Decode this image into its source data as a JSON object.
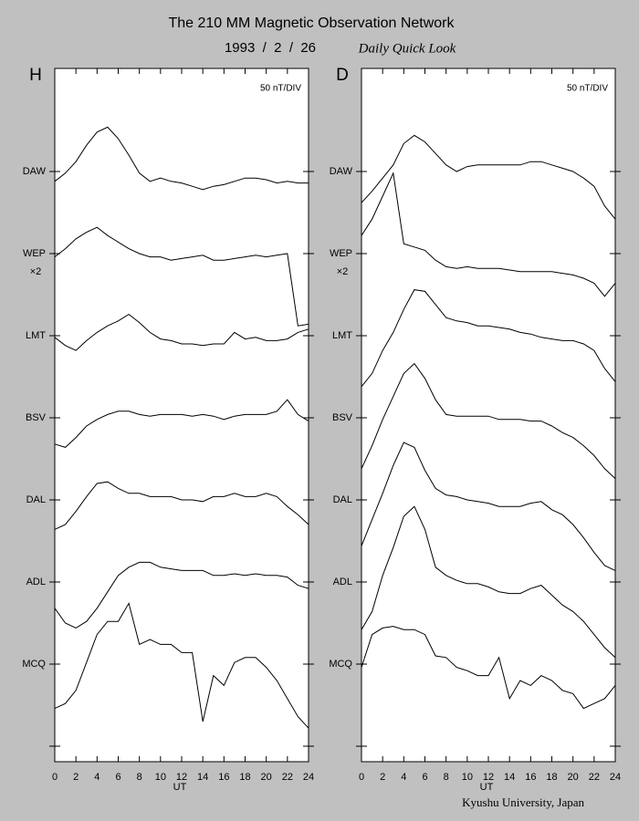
{
  "header": {
    "title": "The 210 MM Magnetic Observation Network",
    "date": "1993  /  2  /  26",
    "subtitle": "Daily Quick Look"
  },
  "footer": "Kyushu University, Japan",
  "chart_data": [
    {
      "type": "line",
      "panel": "H",
      "scale_label": "50 nT/DIV",
      "annotation": "×2",
      "xlabel": "UT",
      "xlim": [
        0,
        24
      ],
      "xticks": [
        0,
        2,
        4,
        6,
        8,
        10,
        12,
        14,
        16,
        18,
        20,
        22,
        24
      ],
      "x": [
        0,
        1,
        2,
        3,
        4,
        5,
        6,
        7,
        8,
        9,
        10,
        11,
        12,
        13,
        14,
        15,
        16,
        17,
        18,
        19,
        20,
        21,
        22,
        23,
        24
      ],
      "stations": [
        "DAW",
        "WEP",
        "LMT",
        "BSV",
        "DAL",
        "ADL",
        "MCQ",
        null
      ],
      "series": [
        {
          "name": "DAW",
          "color": "#000000",
          "values": [
            -6,
            -1,
            6,
            16,
            24,
            27,
            20,
            10,
            -1,
            -6,
            -4,
            -6,
            -7,
            -9,
            -11,
            -9,
            -8,
            -6,
            -4,
            -4,
            -5,
            -7,
            -6,
            -7,
            -7
          ]
        },
        {
          "name": "WEP",
          "color": "#000000",
          "values": [
            -2,
            3,
            9,
            13,
            16,
            11,
            7,
            3,
            0,
            -2,
            -2,
            -4,
            -3,
            -2,
            -1,
            -4,
            -4,
            -3,
            -2,
            -1,
            -2,
            -1,
            0,
            -44,
            -43
          ]
        },
        {
          "name": "LMT",
          "color": "#000000",
          "values": [
            -1,
            -6,
            -9,
            -3,
            2,
            6,
            9,
            13,
            8,
            2,
            -2,
            -3,
            -5,
            -5,
            -6,
            -5,
            -5,
            2,
            -2,
            -1,
            -3,
            -3,
            -2,
            2,
            4
          ]
        },
        {
          "name": "BSV",
          "color": "#000000",
          "values": [
            -16,
            -18,
            -12,
            -5,
            -1,
            2,
            4,
            4,
            2,
            1,
            2,
            2,
            2,
            1,
            2,
            1,
            -1,
            1,
            2,
            2,
            2,
            4,
            11,
            2,
            -2
          ]
        },
        {
          "name": "DAL",
          "color": "#000000",
          "values": [
            -18,
            -15,
            -7,
            2,
            10,
            11,
            7,
            4,
            4,
            2,
            2,
            2,
            0,
            0,
            -1,
            2,
            2,
            4,
            2,
            2,
            4,
            2,
            -4,
            -9,
            -15
          ]
        },
        {
          "name": "ADL",
          "color": "#000000",
          "values": [
            -16,
            -25,
            -28,
            -24,
            -16,
            -6,
            4,
            9,
            12,
            12,
            9,
            8,
            7,
            7,
            7,
            4,
            4,
            5,
            4,
            5,
            4,
            4,
            3,
            -2,
            -4
          ]
        },
        {
          "name": "MCQ",
          "color": "#000000",
          "values": [
            -27,
            -24,
            -16,
            1,
            18,
            26,
            26,
            37,
            12,
            15,
            12,
            12,
            7,
            7,
            -35,
            -7,
            -13,
            1,
            4,
            4,
            -2,
            -10,
            -21,
            -32,
            -39
          ]
        }
      ]
    },
    {
      "type": "line",
      "panel": "D",
      "scale_label": "50 nT/DIV",
      "annotation": "×2",
      "xlabel": "UT",
      "xlim": [
        0,
        24
      ],
      "xticks": [
        0,
        2,
        4,
        6,
        8,
        10,
        12,
        14,
        16,
        18,
        20,
        22,
        24
      ],
      "x": [
        0,
        1,
        2,
        3,
        4,
        5,
        6,
        7,
        8,
        9,
        10,
        11,
        12,
        13,
        14,
        15,
        16,
        17,
        18,
        19,
        20,
        21,
        22,
        23,
        24
      ],
      "stations": [
        "DAW",
        "WEP",
        "LMT",
        "BSV",
        "DAL",
        "ADL",
        "MCQ",
        null
      ],
      "series": [
        {
          "name": "DAW",
          "color": "#000000",
          "values": [
            -19,
            -12,
            -4,
            4,
            17,
            22,
            18,
            11,
            4,
            0,
            3,
            4,
            4,
            4,
            4,
            4,
            6,
            6,
            4,
            2,
            0,
            -4,
            -9,
            -21,
            -29
          ]
        },
        {
          "name": "WEP",
          "color": "#000000",
          "values": [
            11,
            21,
            35,
            49,
            6,
            4,
            2,
            -4,
            -8,
            -9,
            -8,
            -9,
            -9,
            -9,
            -10,
            -11,
            -11,
            -11,
            -11,
            -12,
            -13,
            -15,
            -18,
            -26,
            -18
          ]
        },
        {
          "name": "LMT",
          "color": "#000000",
          "values": [
            -31,
            -23,
            -9,
            2,
            16,
            28,
            27,
            19,
            11,
            9,
            8,
            6,
            6,
            5,
            4,
            2,
            1,
            -1,
            -2,
            -3,
            -3,
            -5,
            -9,
            -20,
            -28
          ]
        },
        {
          "name": "BSV",
          "color": "#000000",
          "values": [
            -31,
            -17,
            -1,
            13,
            27,
            33,
            24,
            11,
            2,
            1,
            1,
            1,
            1,
            -1,
            -1,
            -1,
            -2,
            -2,
            -5,
            -9,
            -12,
            -17,
            -23,
            -31,
            -37
          ]
        },
        {
          "name": "DAL",
          "color": "#000000",
          "values": [
            -28,
            -12,
            4,
            21,
            35,
            32,
            18,
            7,
            3,
            2,
            0,
            -1,
            -2,
            -4,
            -4,
            -4,
            -2,
            -1,
            -6,
            -9,
            -15,
            -23,
            -32,
            -40,
            -43
          ]
        },
        {
          "name": "ADL",
          "color": "#000000",
          "values": [
            -29,
            -18,
            4,
            21,
            40,
            46,
            32,
            9,
            4,
            1,
            -1,
            -1,
            -3,
            -6,
            -7,
            -7,
            -4,
            -2,
            -8,
            -14,
            -18,
            -24,
            -32,
            -40,
            -46
          ]
        },
        {
          "name": "MCQ",
          "color": "#000000",
          "values": [
            -2,
            18,
            22,
            23,
            21,
            21,
            18,
            5,
            4,
            -2,
            -4,
            -7,
            -7,
            4,
            -21,
            -10,
            -13,
            -7,
            -10,
            -16,
            -18,
            -27,
            -24,
            -21,
            -13
          ]
        }
      ]
    }
  ]
}
